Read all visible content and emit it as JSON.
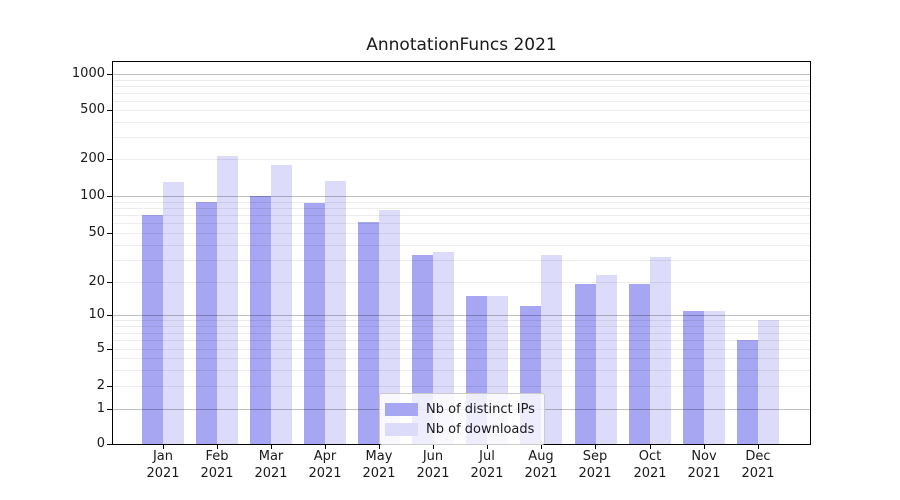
{
  "title": "AnnotationFuncs 2021",
  "chart_data": {
    "type": "bar",
    "title": "AnnotationFuncs 2021",
    "categories": [
      "Jan 2021",
      "Feb 2021",
      "Mar 2021",
      "Apr 2021",
      "May 2021",
      "Jun 2021",
      "Jul 2021",
      "Aug 2021",
      "Sep 2021",
      "Oct 2021",
      "Nov 2021",
      "Dec 2021"
    ],
    "series": [
      {
        "name": "Nb of distinct IPs",
        "color": "#a6a6f3",
        "values": [
          70,
          90,
          100,
          88,
          62,
          33,
          15,
          12,
          19,
          19,
          11,
          6
        ]
      },
      {
        "name": "Nb of downloads",
        "color": "#dcdcfa",
        "values": [
          130,
          210,
          180,
          132,
          77,
          35,
          15,
          33,
          23,
          32,
          11,
          9
        ]
      }
    ],
    "xlabel": "",
    "ylabel": "",
    "yscale": "symlog",
    "y_ticks": [
      0,
      1,
      2,
      5,
      10,
      20,
      50,
      100,
      200,
      500,
      1000
    ],
    "ylim": [
      0,
      1000
    ],
    "grid": "horizontal major decades darker, log minors faint, drawn above bars",
    "legend_position": "lower center"
  },
  "colors": {
    "distinct_ips_bar": "#a6a6f3",
    "downloads_bar": "#dcdcfa",
    "major_grid": "#bfbfbf",
    "minor_grid": "#e9e9e9",
    "spine": "#000000",
    "text": "#1a1a1a"
  }
}
